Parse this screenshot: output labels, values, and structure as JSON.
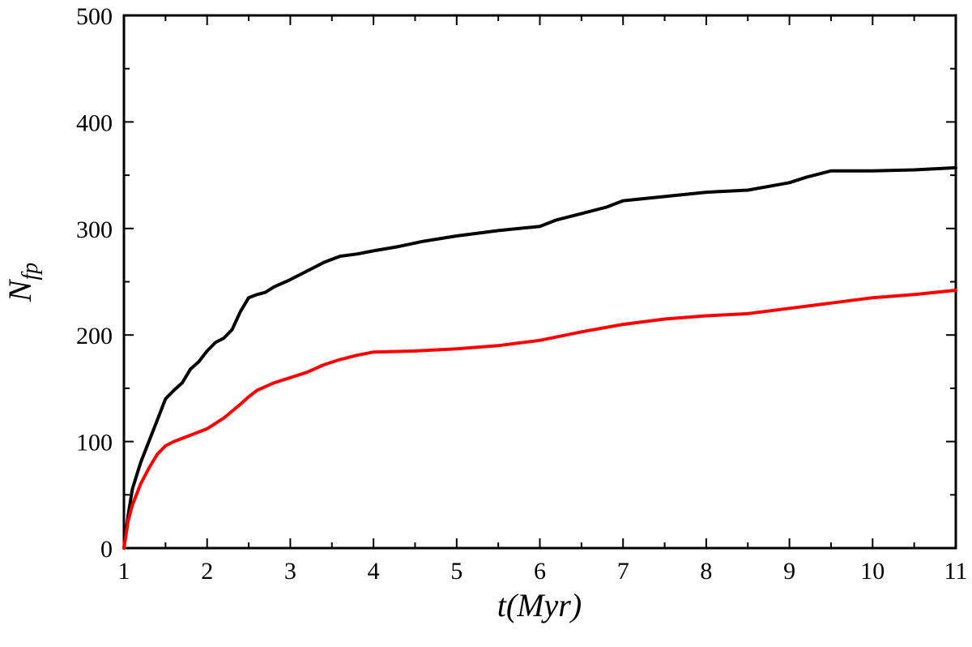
{
  "chart_data": {
    "type": "line",
    "title": "",
    "xlabel": "t(Myr)",
    "ylabel_main": "N",
    "ylabel_sub": "fp",
    "xlim": [
      1,
      11
    ],
    "ylim": [
      0,
      500
    ],
    "xticks": [
      1,
      2,
      3,
      4,
      5,
      6,
      7,
      8,
      9,
      10,
      11
    ],
    "yticks": [
      0,
      100,
      200,
      300,
      400,
      500
    ],
    "grid": false,
    "legend": "none",
    "series": [
      {
        "color": "#000000",
        "x": [
          1.0,
          1.05,
          1.1,
          1.2,
          1.3,
          1.4,
          1.5,
          1.6,
          1.7,
          1.8,
          1.9,
          2.0,
          2.1,
          2.2,
          2.3,
          2.4,
          2.5,
          2.6,
          2.7,
          2.8,
          3.0,
          3.2,
          3.4,
          3.6,
          3.8,
          4.0,
          4.3,
          4.6,
          5.0,
          5.5,
          6.0,
          6.2,
          6.5,
          6.8,
          7.0,
          7.5,
          8.0,
          8.5,
          9.0,
          9.2,
          9.5,
          10.0,
          10.5,
          11.0
        ],
        "y": [
          0,
          30,
          55,
          80,
          100,
          120,
          140,
          148,
          155,
          168,
          175,
          185,
          193,
          197,
          205,
          222,
          235,
          238,
          240,
          245,
          252,
          260,
          268,
          274,
          276,
          279,
          283,
          288,
          293,
          298,
          302,
          308,
          314,
          320,
          326,
          330,
          334,
          336,
          343,
          348,
          354,
          354,
          355,
          357
        ]
      },
      {
        "color": "#ff0000",
        "x": [
          1.0,
          1.05,
          1.1,
          1.2,
          1.3,
          1.4,
          1.5,
          1.6,
          1.8,
          2.0,
          2.2,
          2.4,
          2.5,
          2.6,
          2.8,
          3.0,
          3.2,
          3.4,
          3.6,
          3.8,
          4.0,
          4.5,
          5.0,
          5.5,
          6.0,
          6.5,
          7.0,
          7.5,
          8.0,
          8.5,
          9.0,
          9.5,
          10.0,
          10.5,
          11.0
        ],
        "y": [
          0,
          25,
          40,
          60,
          75,
          88,
          96,
          100,
          106,
          112,
          122,
          135,
          142,
          148,
          155,
          160,
          165,
          172,
          177,
          181,
          184,
          185,
          187,
          190,
          195,
          203,
          210,
          215,
          218,
          220,
          225,
          230,
          235,
          238,
          242
        ]
      }
    ]
  }
}
